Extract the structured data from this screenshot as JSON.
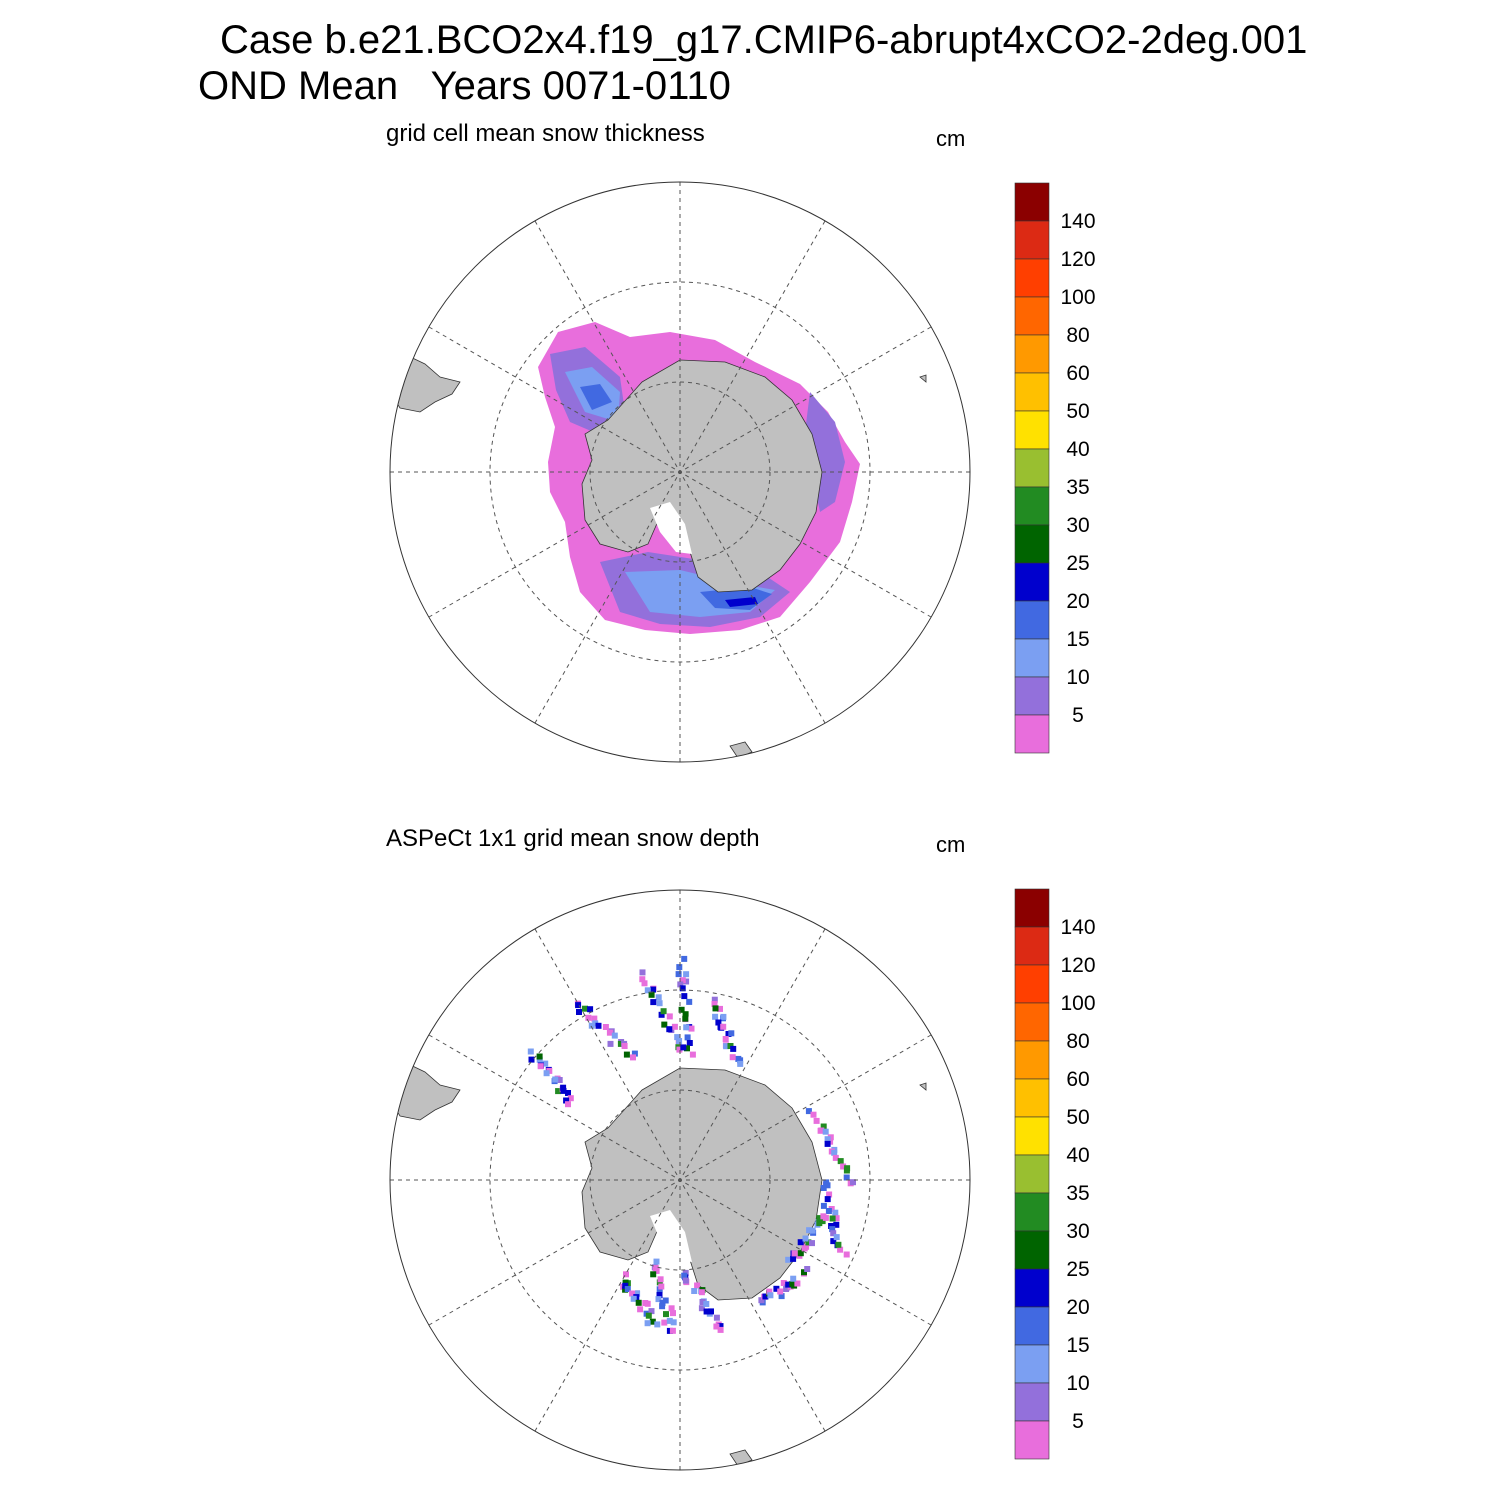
{
  "header": {
    "case_line": "Case b.e21.BCO2x4.f19_g17.CMIP6-abrupt4xCO2-2deg.001",
    "period_line": "OND Mean   Years 0071-0110"
  },
  "colorbar": {
    "units": "cm",
    "labels": [
      "140",
      "120",
      "100",
      "80",
      "60",
      "50",
      "40",
      "35",
      "30",
      "25",
      "20",
      "15",
      "10",
      "5"
    ],
    "colors": [
      "#8b0000",
      "#dc2a14",
      "#ff3f00",
      "#ff6600",
      "#ff9900",
      "#ffc000",
      "#ffe100",
      "#99bf30",
      "#228b22",
      "#006400",
      "#0000cd",
      "#4169e1",
      "#7b9ff2",
      "#9370db",
      "#e86edc"
    ]
  },
  "panels": [
    {
      "title": "grid cell mean snow thickness",
      "units": "cm",
      "kind": "model-field"
    },
    {
      "title": "ASPeCt 1x1 grid mean snow depth",
      "units": "cm",
      "kind": "observations"
    }
  ],
  "map_style": {
    "land": "#c0c0c0",
    "grid_line": "#555555",
    "projection": "south polar stereographic"
  }
}
